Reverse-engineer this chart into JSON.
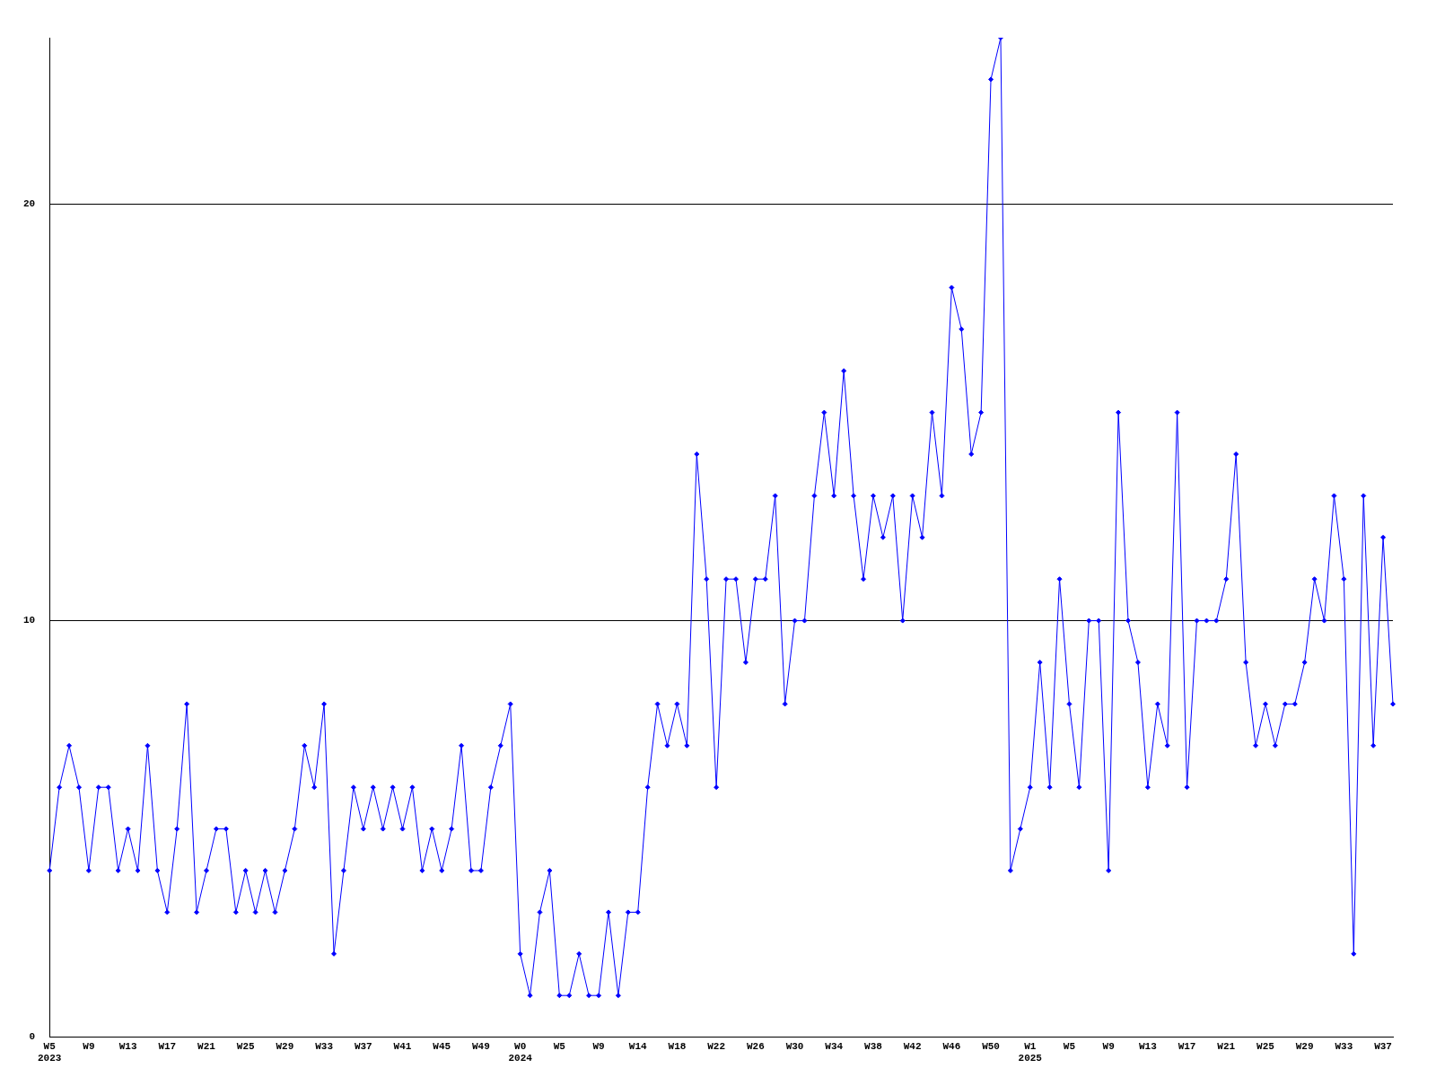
{
  "chart_data": {
    "type": "line",
    "categories": [
      "W5\n2023",
      null,
      null,
      null,
      "W9",
      null,
      null,
      null,
      "W13",
      null,
      null,
      null,
      "W17",
      null,
      null,
      null,
      "W21",
      null,
      null,
      null,
      "W25",
      null,
      null,
      null,
      "W29",
      null,
      null,
      null,
      "W33",
      null,
      null,
      null,
      "W37",
      null,
      null,
      null,
      "W41",
      null,
      null,
      null,
      "W45",
      null,
      null,
      null,
      "W49",
      null,
      null,
      null,
      "W0\n2024",
      null,
      null,
      null,
      "W5",
      null,
      null,
      null,
      "W9",
      null,
      null,
      null,
      "W14",
      null,
      null,
      null,
      "W18",
      null,
      null,
      null,
      "W22",
      null,
      null,
      null,
      "W26",
      null,
      null,
      null,
      "W30",
      null,
      null,
      null,
      "W34",
      null,
      null,
      null,
      "W38",
      null,
      null,
      null,
      "W42",
      null,
      null,
      null,
      "W46",
      null,
      null,
      null,
      "W50",
      null,
      null,
      null,
      "W1\n2025",
      null,
      null,
      null,
      "W5",
      null,
      null,
      null,
      "W9",
      null,
      null,
      null,
      "W13",
      null,
      null,
      null,
      "W17",
      null,
      null,
      null,
      "W21",
      null,
      null,
      null,
      "W25",
      null,
      null,
      null,
      "W29",
      null,
      null,
      null,
      "W33",
      null,
      null,
      null,
      "W37",
      null
    ],
    "values": [
      4,
      6,
      7,
      6,
      4,
      6,
      6,
      4,
      5,
      4,
      7,
      4,
      3,
      5,
      8,
      3,
      4,
      5,
      5,
      3,
      4,
      3,
      4,
      3,
      4,
      5,
      7,
      6,
      8,
      2,
      4,
      6,
      5,
      6,
      5,
      6,
      5,
      6,
      4,
      5,
      4,
      5,
      7,
      4,
      4,
      6,
      7,
      8,
      2,
      1,
      3,
      4,
      1,
      1,
      2,
      1,
      1,
      3,
      1,
      3,
      3,
      6,
      8,
      7,
      8,
      7,
      14,
      11,
      6,
      11,
      11,
      9,
      11,
      11,
      13,
      8,
      10,
      10,
      13,
      15,
      13,
      16,
      13,
      11,
      13,
      12,
      13,
      10,
      13,
      12,
      15,
      13,
      18,
      17,
      14,
      15,
      23,
      24,
      4,
      5,
      6,
      9,
      6,
      11,
      8,
      6,
      10,
      10,
      4,
      15,
      10,
      9,
      6,
      8,
      7,
      15,
      6,
      10,
      10,
      10,
      11,
      14,
      9,
      7,
      8,
      7,
      8,
      8,
      9,
      11,
      10,
      13,
      11,
      2,
      13,
      7,
      12,
      8
    ],
    "color": "#0000ff",
    "ylim": [
      0,
      24
    ],
    "yticks": [
      0,
      10,
      20
    ],
    "grid": "y",
    "marker": "diamond",
    "line_style": "solid",
    "legend": false
  }
}
